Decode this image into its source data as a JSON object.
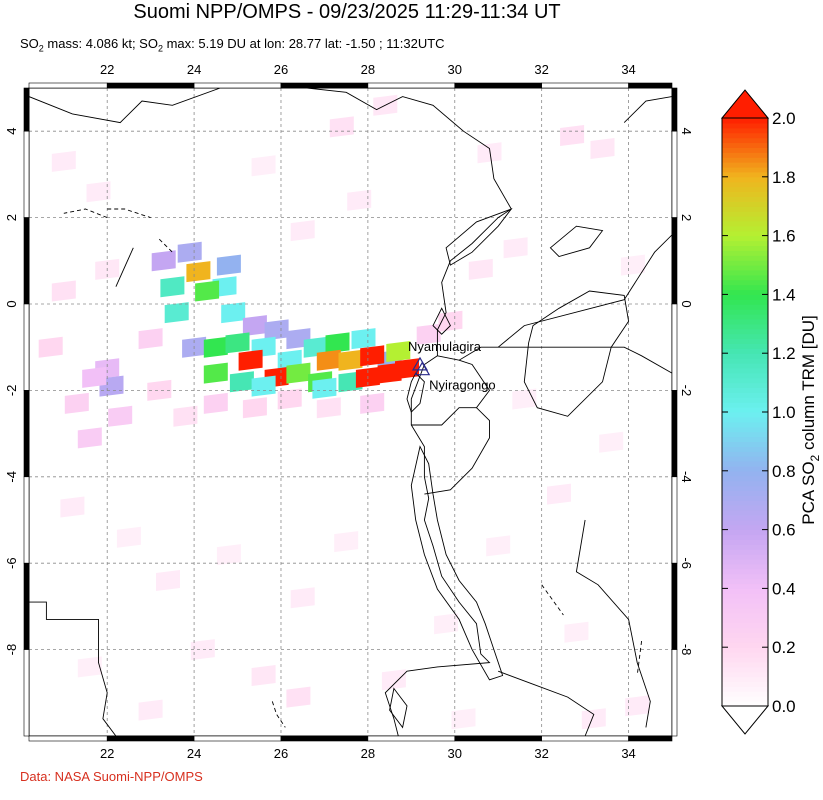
{
  "title": "Suomi NPP/OMPS - 09/23/2025 11:29-11:34 UT",
  "subtitle": {
    "part1": "SO",
    "sub1": "2",
    "part2": " mass: 4.086 kt; SO",
    "sub2": "2",
    "part3": " max: 5.19 DU at lon: 28.77 lat: -1.50 ; 11:32UTC"
  },
  "credit": "Data: NASA Suomi-NPP/OMPS",
  "map": {
    "lon_min": 20.2,
    "lon_max": 35.0,
    "lat_min": -10.0,
    "lat_max": 5.0,
    "lon_ticks": [
      22,
      24,
      26,
      28,
      30,
      32,
      34
    ],
    "lat_ticks": [
      4,
      2,
      0,
      -2,
      -4,
      -6,
      -8
    ],
    "lon_tick_labels": [
      "22",
      "24",
      "26",
      "28",
      "30",
      "32",
      "34"
    ],
    "lat_tick_labels": [
      "4",
      "2",
      "0",
      "-2",
      "-4",
      "-6",
      "-8"
    ]
  },
  "volcanoes": [
    {
      "name": "Nyamulagira",
      "lon": 29.2,
      "lat": -1.41
    },
    {
      "name": "Nyiragongo",
      "lon": 29.25,
      "lat": -1.52
    }
  ],
  "colorbar": {
    "label": "PCA SO2 column TRM [DU]",
    "label_part1": "PCA SO",
    "label_sub": "2",
    "label_part2": " column TRM [DU]",
    "min": 0.0,
    "max": 2.0,
    "tick_values": [
      0.0,
      0.2,
      0.4,
      0.6,
      0.8,
      1.0,
      1.2,
      1.4,
      1.6,
      1.8,
      2.0
    ],
    "tick_labels": [
      "0.0",
      "0.2",
      "0.4",
      "0.6",
      "0.8",
      "1.0",
      "1.2",
      "1.4",
      "1.6",
      "1.8",
      "2.0"
    ],
    "stops": [
      {
        "v": 0.0,
        "color": "#ffffff"
      },
      {
        "v": 0.2,
        "color": "#ffd7f0"
      },
      {
        "v": 0.4,
        "color": "#f2c0f7"
      },
      {
        "v": 0.6,
        "color": "#c4a6f2"
      },
      {
        "v": 0.8,
        "color": "#93b2f0"
      },
      {
        "v": 1.0,
        "color": "#6cf0f0"
      },
      {
        "v": 1.2,
        "color": "#46e6b4"
      },
      {
        "v": 1.4,
        "color": "#32e650"
      },
      {
        "v": 1.6,
        "color": "#b4f032"
      },
      {
        "v": 1.8,
        "color": "#f0b41e"
      },
      {
        "v": 2.0,
        "color": "#ff1e00"
      }
    ]
  },
  "so2_pixels": [
    {
      "lon": 23.3,
      "lat": 1.0,
      "v": 0.6
    },
    {
      "lon": 23.9,
      "lat": 1.2,
      "v": 0.7
    },
    {
      "lon": 24.8,
      "lat": 0.9,
      "v": 0.8
    },
    {
      "lon": 23.5,
      "lat": 0.4,
      "v": 1.15
    },
    {
      "lon": 24.1,
      "lat": 0.75,
      "v": 1.8
    },
    {
      "lon": 24.7,
      "lat": 0.4,
      "v": 1.0
    },
    {
      "lon": 24.3,
      "lat": 0.3,
      "v": 1.45
    },
    {
      "lon": 23.6,
      "lat": -0.2,
      "v": 1.1
    },
    {
      "lon": 24.9,
      "lat": -0.2,
      "v": 1.0
    },
    {
      "lon": 25.4,
      "lat": -0.5,
      "v": 0.6
    },
    {
      "lon": 25.9,
      "lat": -0.6,
      "v": 0.7
    },
    {
      "lon": 26.4,
      "lat": -0.8,
      "v": 0.7
    },
    {
      "lon": 24.0,
      "lat": -1.0,
      "v": 0.7
    },
    {
      "lon": 24.5,
      "lat": -1.0,
      "v": 1.4
    },
    {
      "lon": 25.0,
      "lat": -0.9,
      "v": 1.3
    },
    {
      "lon": 25.6,
      "lat": -1.0,
      "v": 1.0
    },
    {
      "lon": 26.2,
      "lat": -1.3,
      "v": 1.0
    },
    {
      "lon": 26.8,
      "lat": -1.0,
      "v": 1.1
    },
    {
      "lon": 27.3,
      "lat": -0.9,
      "v": 1.4
    },
    {
      "lon": 27.9,
      "lat": -0.8,
      "v": 1.0
    },
    {
      "lon": 28.5,
      "lat": -1.3,
      "v": 0.8
    },
    {
      "lon": 24.5,
      "lat": -1.6,
      "v": 1.45
    },
    {
      "lon": 25.3,
      "lat": -1.3,
      "v": 2.0
    },
    {
      "lon": 25.9,
      "lat": -1.7,
      "v": 2.0
    },
    {
      "lon": 25.1,
      "lat": -1.8,
      "v": 1.2
    },
    {
      "lon": 25.6,
      "lat": -1.9,
      "v": 1.0
    },
    {
      "lon": 26.4,
      "lat": -1.6,
      "v": 1.5
    },
    {
      "lon": 26.9,
      "lat": -1.8,
      "v": 1.45
    },
    {
      "lon": 27.1,
      "lat": -1.3,
      "v": 1.85
    },
    {
      "lon": 27.6,
      "lat": -1.3,
      "v": 1.8
    },
    {
      "lon": 27.6,
      "lat": -1.8,
      "v": 1.2
    },
    {
      "lon": 27.0,
      "lat": -1.95,
      "v": 1.0
    },
    {
      "lon": 28.1,
      "lat": -1.2,
      "v": 2.0
    },
    {
      "lon": 28.7,
      "lat": -1.1,
      "v": 1.6
    },
    {
      "lon": 28.5,
      "lat": -1.6,
      "v": 2.0
    },
    {
      "lon": 28.9,
      "lat": -1.5,
      "v": 2.0
    },
    {
      "lon": 28.0,
      "lat": -1.7,
      "v": 2.0
    },
    {
      "lon": 22.0,
      "lat": -1.5,
      "v": 0.45
    },
    {
      "lon": 22.1,
      "lat": -1.9,
      "v": 0.65
    },
    {
      "lon": 21.7,
      "lat": -1.7,
      "v": 0.4
    },
    {
      "lon": 22.3,
      "lat": -2.6,
      "v": 0.3
    },
    {
      "lon": 21.6,
      "lat": -3.1,
      "v": 0.3
    },
    {
      "lon": 21.3,
      "lat": -2.3,
      "v": 0.25
    },
    {
      "lon": 20.7,
      "lat": -1.0,
      "v": 0.2
    },
    {
      "lon": 21.0,
      "lat": 0.3,
      "v": 0.15
    },
    {
      "lon": 22.0,
      "lat": 0.8,
      "v": 0.12
    },
    {
      "lon": 23.0,
      "lat": -0.8,
      "v": 0.25
    },
    {
      "lon": 23.2,
      "lat": -2.0,
      "v": 0.2
    },
    {
      "lon": 23.8,
      "lat": -2.6,
      "v": 0.15
    },
    {
      "lon": 24.5,
      "lat": -2.3,
      "v": 0.25
    },
    {
      "lon": 25.4,
      "lat": -2.4,
      "v": 0.2
    },
    {
      "lon": 26.2,
      "lat": -2.2,
      "v": 0.2
    },
    {
      "lon": 27.1,
      "lat": -2.4,
      "v": 0.15
    },
    {
      "lon": 28.1,
      "lat": -2.3,
      "v": 0.25
    },
    {
      "lon": 29.4,
      "lat": -0.7,
      "v": 0.25
    },
    {
      "lon": 29.9,
      "lat": -0.4,
      "v": 0.2
    },
    {
      "lon": 30.6,
      "lat": 0.8,
      "v": 0.12
    },
    {
      "lon": 31.4,
      "lat": 1.3,
      "v": 0.1
    },
    {
      "lon": 27.4,
      "lat": 4.1,
      "v": 0.15
    },
    {
      "lon": 28.4,
      "lat": 4.6,
      "v": 0.12
    },
    {
      "lon": 30.8,
      "lat": 3.5,
      "v": 0.1
    },
    {
      "lon": 32.7,
      "lat": 3.9,
      "v": 0.15
    },
    {
      "lon": 33.4,
      "lat": 3.6,
      "v": 0.12
    },
    {
      "lon": 21.0,
      "lat": 3.3,
      "v": 0.1
    },
    {
      "lon": 21.8,
      "lat": 2.6,
      "v": 0.1
    },
    {
      "lon": 25.6,
      "lat": 3.2,
      "v": 0.08
    },
    {
      "lon": 26.5,
      "lat": 1.7,
      "v": 0.1
    },
    {
      "lon": 27.8,
      "lat": 2.4,
      "v": 0.1
    },
    {
      "lon": 21.2,
      "lat": -4.7,
      "v": 0.1
    },
    {
      "lon": 22.5,
      "lat": -5.4,
      "v": 0.08
    },
    {
      "lon": 23.4,
      "lat": -6.4,
      "v": 0.1
    },
    {
      "lon": 24.8,
      "lat": -5.8,
      "v": 0.08
    },
    {
      "lon": 26.5,
      "lat": -6.8,
      "v": 0.1
    },
    {
      "lon": 27.5,
      "lat": -5.5,
      "v": 0.08
    },
    {
      "lon": 24.2,
      "lat": -8.0,
      "v": 0.1
    },
    {
      "lon": 25.6,
      "lat": -8.6,
      "v": 0.12
    },
    {
      "lon": 26.4,
      "lat": -9.1,
      "v": 0.15
    },
    {
      "lon": 21.6,
      "lat": -8.4,
      "v": 0.08
    },
    {
      "lon": 23.0,
      "lat": -9.4,
      "v": 0.1
    },
    {
      "lon": 28.6,
      "lat": -8.7,
      "v": 0.1
    },
    {
      "lon": 29.8,
      "lat": -7.4,
      "v": 0.08
    },
    {
      "lon": 31.0,
      "lat": -5.6,
      "v": 0.08
    },
    {
      "lon": 32.4,
      "lat": -4.4,
      "v": 0.1
    },
    {
      "lon": 33.6,
      "lat": -3.2,
      "v": 0.08
    },
    {
      "lon": 32.8,
      "lat": -7.6,
      "v": 0.08
    },
    {
      "lon": 34.2,
      "lat": -9.3,
      "v": 0.1
    },
    {
      "lon": 33.2,
      "lat": -9.6,
      "v": 0.1
    },
    {
      "lon": 30.2,
      "lat": -9.6,
      "v": 0.08
    },
    {
      "lon": 31.6,
      "lat": -2.2,
      "v": 0.08
    },
    {
      "lon": 34.1,
      "lat": 0.9,
      "v": 0.08
    }
  ],
  "geography": {
    "borders": [
      [
        [
          20.2,
          4.8
        ],
        [
          21.2,
          4.4
        ],
        [
          22.3,
          4.2
        ],
        [
          22.8,
          4.7
        ],
        [
          23.5,
          4.6
        ],
        [
          24.6,
          5.0
        ],
        [
          25.3,
          5.0
        ],
        [
          26.6,
          5.0
        ],
        [
          27.5,
          4.9
        ],
        [
          28.2,
          4.5
        ],
        [
          28.8,
          4.8
        ],
        [
          29.5,
          4.6
        ],
        [
          30.2,
          4.0
        ],
        [
          30.8,
          3.6
        ],
        [
          30.9,
          2.9
        ],
        [
          31.3,
          2.2
        ],
        [
          31.0,
          2.0
        ],
        [
          30.4,
          1.4
        ],
        [
          29.9,
          1.0
        ],
        [
          29.7,
          0.5
        ],
        [
          29.8,
          -0.2
        ],
        [
          29.6,
          -0.6
        ],
        [
          29.6,
          -1.2
        ],
        [
          29.3,
          -1.4
        ],
        [
          29.0,
          -2.2
        ],
        [
          29.0,
          -2.8
        ],
        [
          29.3,
          -3.3
        ],
        [
          29.3,
          -4.0
        ],
        [
          29.4,
          -4.5
        ],
        [
          29.3,
          -5.0
        ],
        [
          29.5,
          -5.6
        ],
        [
          29.7,
          -6.3
        ],
        [
          30.1,
          -6.9
        ],
        [
          30.5,
          -7.4
        ],
        [
          30.6,
          -8.1
        ],
        [
          30.8,
          -8.3
        ],
        [
          29.6,
          -8.4
        ],
        [
          28.9,
          -8.5
        ],
        [
          28.4,
          -9.0
        ],
        [
          28.6,
          -9.6
        ],
        [
          28.7,
          -10.0
        ]
      ],
      [
        [
          29.6,
          -1.2
        ],
        [
          30.1,
          -1.3
        ],
        [
          30.6,
          -1.0
        ],
        [
          31.0,
          -1.0
        ],
        [
          32.0,
          -1.0
        ],
        [
          33.0,
          -1.0
        ],
        [
          33.9,
          -1.0
        ],
        [
          34.3,
          -1.2
        ],
        [
          35.0,
          -1.6
        ]
      ],
      [
        [
          29.0,
          -2.8
        ],
        [
          29.7,
          -2.8
        ],
        [
          30.1,
          -2.4
        ],
        [
          30.5,
          -2.4
        ],
        [
          30.8,
          -2.0
        ],
        [
          30.4,
          -1.4
        ],
        [
          30.1,
          -1.3
        ]
      ],
      [
        [
          29.3,
          -4.4
        ],
        [
          29.9,
          -4.3
        ],
        [
          30.4,
          -3.8
        ],
        [
          30.8,
          -3.1
        ],
        [
          30.8,
          -2.7
        ],
        [
          30.5,
          -2.4
        ]
      ],
      [
        [
          31.0,
          -1.0
        ],
        [
          31.6,
          -0.5
        ],
        [
          33.9,
          0.1
        ],
        [
          34.6,
          1.2
        ],
        [
          35.0,
          1.6
        ]
      ],
      [
        [
          33.9,
          4.2
        ],
        [
          34.4,
          4.7
        ],
        [
          35.0,
          4.8
        ]
      ],
      [
        [
          22.2,
          0.4
        ],
        [
          22.6,
          1.3
        ]
      ],
      [
        [
          20.2,
          -6.9
        ],
        [
          20.6,
          -6.9
        ],
        [
          20.6,
          -7.3
        ],
        [
          21.8,
          -7.3
        ],
        [
          21.8,
          -8.3
        ],
        [
          22.0,
          -9.0
        ],
        [
          21.9,
          -9.6
        ],
        [
          22.2,
          -10.0
        ]
      ],
      [
        [
          33.0,
          -5.0
        ],
        [
          32.8,
          -6.2
        ],
        [
          33.3,
          -6.5
        ],
        [
          34.0,
          -7.3
        ],
        [
          34.2,
          -8.3
        ],
        [
          34.5,
          -9.2
        ],
        [
          34.4,
          -9.8
        ]
      ],
      [
        [
          31.0,
          -8.5
        ],
        [
          31.8,
          -8.8
        ],
        [
          32.6,
          -9.1
        ],
        [
          33.2,
          -9.5
        ],
        [
          33.0,
          -10.0
        ]
      ]
    ],
    "lakes": [
      [
        [
          29.8,
          1.3
        ],
        [
          30.5,
          1.9
        ],
        [
          31.3,
          2.2
        ],
        [
          31.0,
          1.8
        ],
        [
          30.4,
          1.2
        ],
        [
          29.9,
          0.9
        ],
        [
          29.8,
          1.3
        ]
      ],
      [
        [
          29.7,
          -0.1
        ],
        [
          29.9,
          -0.5
        ],
        [
          29.7,
          -0.7
        ],
        [
          29.5,
          -0.5
        ],
        [
          29.7,
          -0.1
        ]
      ],
      [
        [
          29.1,
          -1.6
        ],
        [
          29.3,
          -1.8
        ],
        [
          29.2,
          -2.3
        ],
        [
          29.0,
          -2.5
        ],
        [
          28.9,
          -2.2
        ],
        [
          29.0,
          -1.8
        ],
        [
          29.1,
          -1.6
        ]
      ],
      [
        [
          29.2,
          -3.3
        ],
        [
          29.4,
          -3.7
        ],
        [
          29.5,
          -4.4
        ],
        [
          29.6,
          -5.0
        ],
        [
          29.8,
          -5.8
        ],
        [
          30.1,
          -6.4
        ],
        [
          30.5,
          -6.9
        ],
        [
          30.7,
          -7.4
        ],
        [
          30.9,
          -8.0
        ],
        [
          31.1,
          -8.6
        ],
        [
          30.8,
          -8.7
        ],
        [
          30.4,
          -8.0
        ],
        [
          30.1,
          -7.3
        ],
        [
          29.6,
          -6.6
        ],
        [
          29.3,
          -5.8
        ],
        [
          29.1,
          -5.0
        ],
        [
          29.0,
          -4.2
        ],
        [
          29.2,
          -3.3
        ]
      ],
      [
        [
          31.8,
          -0.5
        ],
        [
          32.4,
          -0.1
        ],
        [
          33.1,
          0.3
        ],
        [
          33.9,
          0.2
        ],
        [
          34.0,
          -0.4
        ],
        [
          33.6,
          -1.0
        ],
        [
          33.4,
          -1.8
        ],
        [
          32.6,
          -2.6
        ],
        [
          31.9,
          -2.4
        ],
        [
          31.6,
          -1.8
        ],
        [
          31.7,
          -0.9
        ],
        [
          31.8,
          -0.5
        ]
      ],
      [
        [
          32.2,
          1.3
        ],
        [
          32.8,
          1.8
        ],
        [
          33.4,
          1.7
        ],
        [
          33.1,
          1.3
        ],
        [
          32.4,
          1.1
        ],
        [
          32.2,
          1.3
        ]
      ],
      [
        [
          28.6,
          -8.9
        ],
        [
          28.9,
          -9.3
        ],
        [
          28.8,
          -9.8
        ],
        [
          28.5,
          -9.4
        ],
        [
          28.6,
          -8.9
        ]
      ]
    ],
    "rivers": [
      [
        [
          22.0,
          2.0
        ],
        [
          21.5,
          2.2
        ],
        [
          21.0,
          2.1
        ]
      ],
      [
        [
          22.0,
          2.2
        ],
        [
          22.4,
          2.2
        ],
        [
          23.0,
          2.0
        ]
      ],
      [
        [
          23.2,
          1.5
        ],
        [
          23.5,
          1.2
        ]
      ],
      [
        [
          25.8,
          -9.2
        ],
        [
          25.9,
          -9.5
        ],
        [
          26.1,
          -9.8
        ]
      ],
      [
        [
          34.3,
          -7.8
        ],
        [
          34.2,
          -8.6
        ]
      ],
      [
        [
          32.0,
          -6.5
        ],
        [
          32.5,
          -7.2
        ]
      ]
    ]
  }
}
